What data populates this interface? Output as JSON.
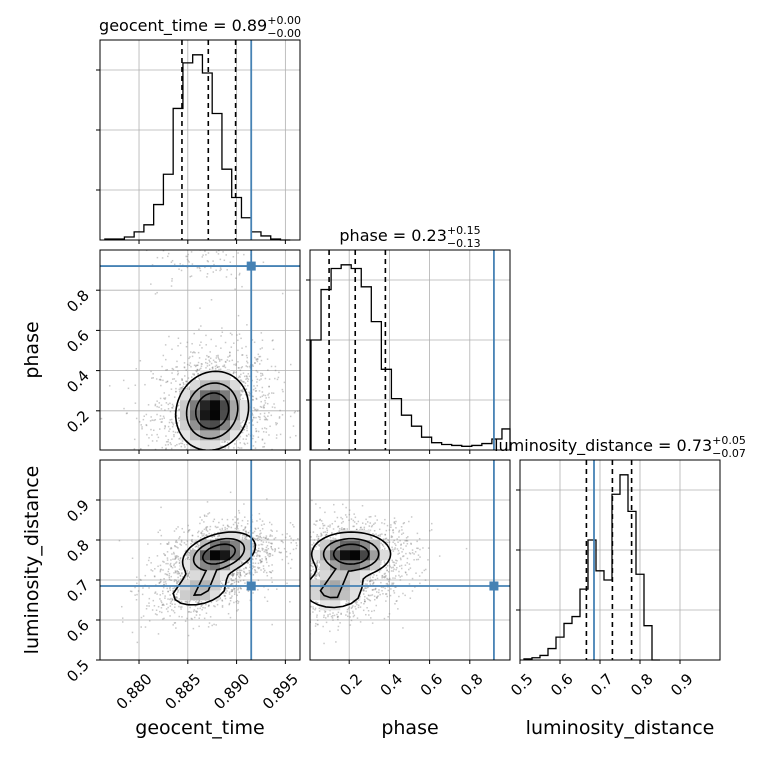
{
  "chart_data": {
    "type": "corner",
    "parameters": [
      "geocent_time",
      "phase",
      "luminosity_distance"
    ],
    "colors": {
      "truth": "#4682b4",
      "histogram": "#000000",
      "quantile": "#000000",
      "grid": "#b0b0b0",
      "points": "#888888"
    },
    "truths": {
      "geocent_time": 0.8915,
      "phase": 0.92,
      "luminosity_distance": 0.685
    },
    "titles": {
      "geocent_time": {
        "name": "geocent_time",
        "value": "0.89",
        "plus": "+0.00",
        "minus": "−0.00"
      },
      "phase": {
        "name": "phase",
        "value": "0.23",
        "plus": "+0.15",
        "minus": "−0.13"
      },
      "luminosity_distance": {
        "name": "luminosity_distance",
        "value": "0.73",
        "plus": "+0.05",
        "minus": "−0.07"
      }
    },
    "axes": {
      "geocent_time": {
        "label": "geocent_time",
        "range": [
          0.876,
          0.8965
        ],
        "ticks": [
          0.88,
          0.885,
          0.89,
          0.895
        ],
        "tick_labels": [
          "0.880",
          "0.885",
          "0.890",
          "0.895"
        ]
      },
      "phase": {
        "label": "phase",
        "range": [
          0.005,
          1.0
        ],
        "ticks": [
          0.2,
          0.4,
          0.6,
          0.8
        ],
        "tick_labels": [
          "0.2",
          "0.4",
          "0.6",
          "0.8"
        ]
      },
      "luminosity_distance": {
        "label": "luminosity_distance",
        "range": [
          0.5,
          1.0
        ],
        "ticks": [
          0.5,
          0.6,
          0.7,
          0.8,
          0.9
        ],
        "tick_labels": [
          "0.5",
          "0.6",
          "0.7",
          "0.8",
          "0.9"
        ]
      }
    },
    "histograms": {
      "geocent_time": {
        "edges": [
          0.8765,
          0.8775,
          0.8785,
          0.8795,
          0.8805,
          0.8815,
          0.8825,
          0.8835,
          0.8845,
          0.8855,
          0.8865,
          0.8875,
          0.8885,
          0.8895,
          0.8905,
          0.8915,
          0.8925,
          0.8935,
          0.8945,
          0.8955
        ],
        "counts": [
          1,
          1,
          3,
          8,
          15,
          35,
          65,
          130,
          175,
          183,
          165,
          125,
          70,
          42,
          22,
          8,
          4,
          1,
          0
        ],
        "quantiles": [
          0.8844,
          0.8871,
          0.8899
        ]
      },
      "phase": {
        "edges": [
          0.01,
          0.06,
          0.11,
          0.16,
          0.21,
          0.26,
          0.31,
          0.36,
          0.41,
          0.46,
          0.51,
          0.56,
          0.61,
          0.66,
          0.71,
          0.76,
          0.81,
          0.86,
          0.91,
          0.96,
          1.0
        ],
        "counts": [
          120,
          175,
          198,
          202,
          198,
          178,
          140,
          88,
          56,
          38,
          26,
          14,
          8,
          6,
          5,
          4,
          5,
          7,
          12,
          23
        ],
        "quantiles": [
          0.1,
          0.23,
          0.38
        ]
      },
      "luminosity_distance": {
        "edges": [
          0.51,
          0.53,
          0.55,
          0.57,
          0.59,
          0.61,
          0.63,
          0.65,
          0.67,
          0.69,
          0.71,
          0.73,
          0.75,
          0.77,
          0.79,
          0.81,
          0.83,
          0.85
        ],
        "counts": [
          1,
          2,
          4,
          10,
          20,
          32,
          38,
          62,
          105,
          78,
          70,
          145,
          162,
          130,
          75,
          30,
          0
        ],
        "quantiles": [
          0.666,
          0.731,
          0.779
        ]
      }
    },
    "density_2d": [
      {
        "x": "geocent_time",
        "y": "phase",
        "modes": [
          {
            "cx": 0.8875,
            "cy": 0.2,
            "sx": 0.0019,
            "sy": 0.1,
            "rho": 0.1,
            "w": 1
          },
          {
            "cx": 0.8865,
            "cy": 0.96,
            "sx": 0.0018,
            "sy": 0.05,
            "rho": 0,
            "w": 0.06
          }
        ]
      },
      {
        "x": "geocent_time",
        "y": "luminosity_distance",
        "modes": [
          {
            "cx": 0.8882,
            "cy": 0.765,
            "sx": 0.0019,
            "sy": 0.028,
            "rho": 0.35,
            "w": 1
          },
          {
            "cx": 0.8862,
            "cy": 0.675,
            "sx": 0.0018,
            "sy": 0.025,
            "rho": 0.3,
            "w": 0.45
          }
        ]
      },
      {
        "x": "phase",
        "y": "luminosity_distance",
        "modes": [
          {
            "cx": 0.21,
            "cy": 0.765,
            "sx": 0.1,
            "sy": 0.028,
            "rho": 0,
            "w": 1
          },
          {
            "cx": 0.12,
            "cy": 0.675,
            "sx": 0.09,
            "sy": 0.028,
            "rho": 0,
            "w": 0.5
          }
        ]
      }
    ]
  }
}
